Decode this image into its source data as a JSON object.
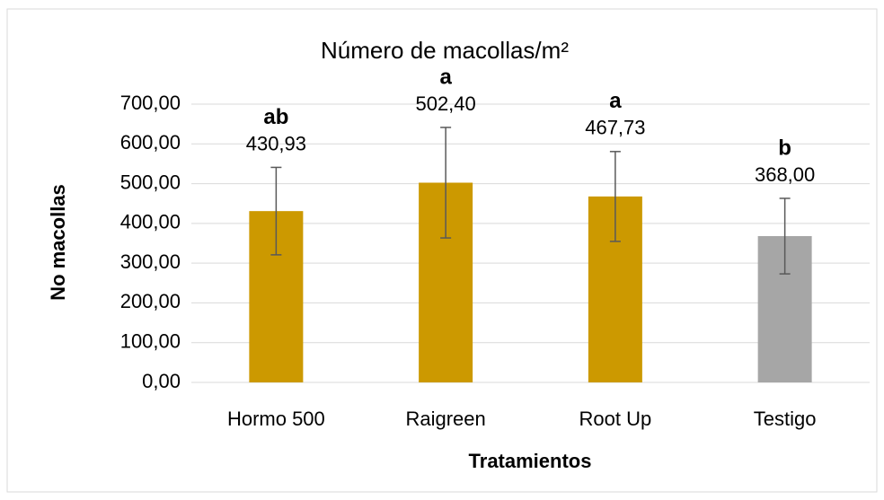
{
  "chart_data": {
    "type": "bar",
    "title": "Número de macollas/m²",
    "x_label": "Tratamientos",
    "y_label": "No macollas",
    "categories": [
      "Hormo 500",
      "Raigreen",
      "Root Up",
      "Testigo"
    ],
    "values": [
      430.93,
      502.4,
      467.73,
      368.0
    ],
    "value_labels": [
      "430,93",
      "502,40",
      "467,73",
      "368,00"
    ],
    "errors": [
      110,
      139,
      113,
      95
    ],
    "annotations": [
      "ab",
      "a",
      "a",
      "b"
    ],
    "colors": [
      "#cc9900",
      "#cc9900",
      "#cc9900",
      "#a6a6a6"
    ],
    "ylim": [
      0,
      700
    ],
    "yticks": [
      {
        "value": 0,
        "label": "0,00"
      },
      {
        "value": 100,
        "label": "100,00"
      },
      {
        "value": 200,
        "label": "200,00"
      },
      {
        "value": 300,
        "label": "300,00"
      },
      {
        "value": 400,
        "label": "400,00"
      },
      {
        "value": 500,
        "label": "500,00"
      },
      {
        "value": 600,
        "label": "600,00"
      },
      {
        "value": 700,
        "label": "700,00"
      }
    ],
    "grid": true
  }
}
